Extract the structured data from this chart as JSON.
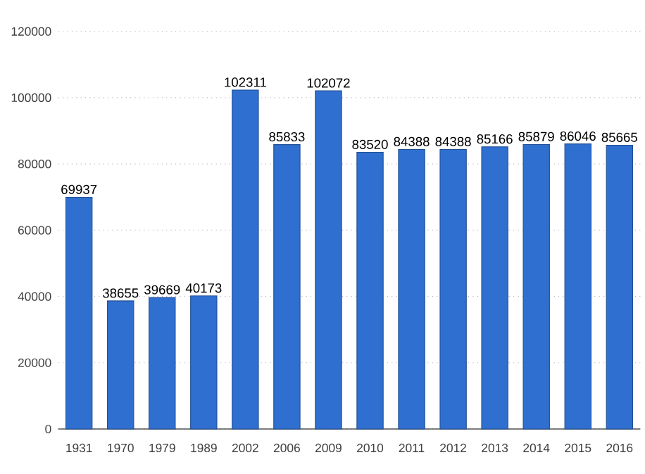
{
  "chart_data": {
    "type": "bar",
    "categories": [
      "1931",
      "1970",
      "1979",
      "1989",
      "2002",
      "2006",
      "2009",
      "2010",
      "2011",
      "2012",
      "2013",
      "2014",
      "2015",
      "2016"
    ],
    "values": [
      69937,
      38655,
      39669,
      40173,
      102311,
      85833,
      102072,
      83520,
      84388,
      84388,
      85166,
      85879,
      86046,
      85665
    ],
    "color": "#2f6fd0",
    "ylim": [
      0,
      120000
    ],
    "yticks": [
      0,
      20000,
      40000,
      60000,
      80000,
      100000,
      120000
    ],
    "grid": "y",
    "data_labels": true
  }
}
